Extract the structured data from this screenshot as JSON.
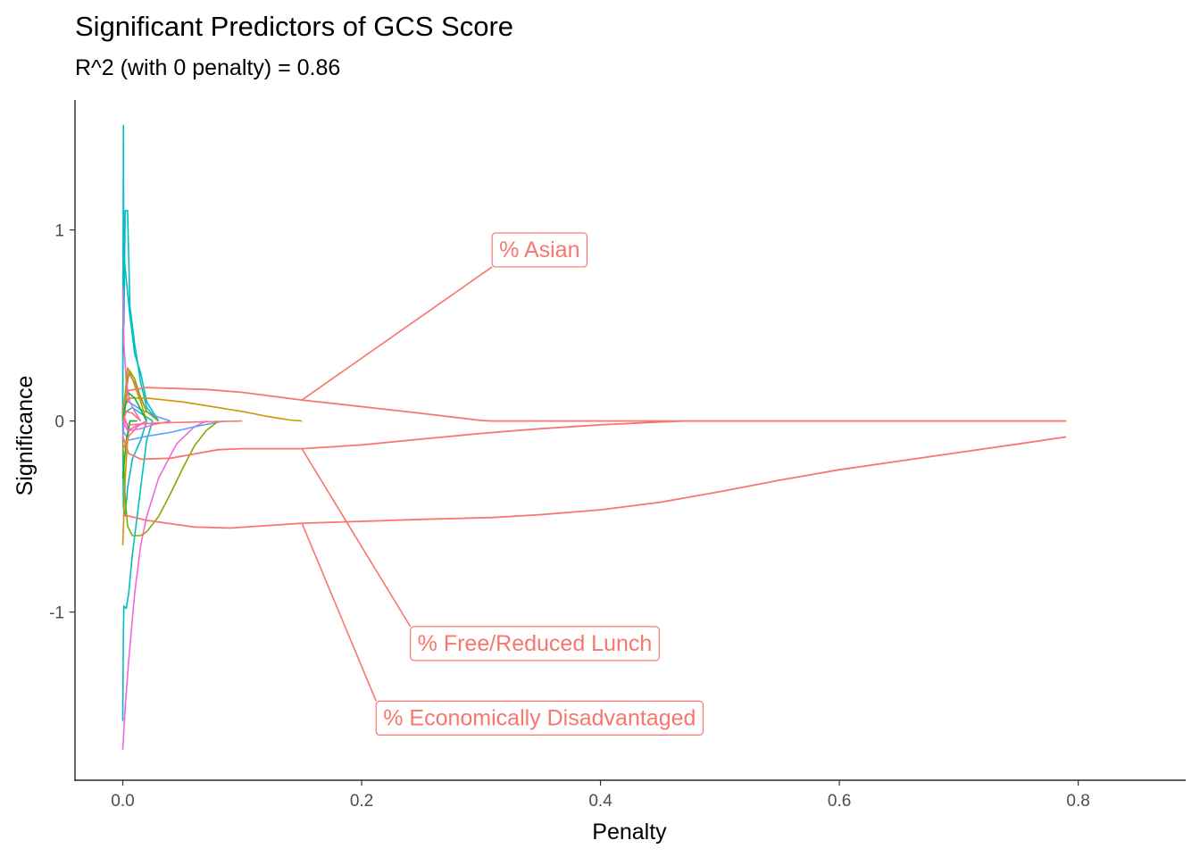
{
  "chart_data": {
    "type": "line",
    "title": "Significant Predictors of GCS Score",
    "subtitle": "R^2 (with 0 penalty) = 0.86",
    "xlabel": "Penalty",
    "ylabel": "Significance",
    "xlim": [
      -0.04,
      0.89
    ],
    "ylim": [
      -1.88,
      1.68
    ],
    "x_ticks": [
      0.0,
      0.2,
      0.4,
      0.6,
      0.8
    ],
    "x_tick_labels": [
      "0.0",
      "0.2",
      "0.4",
      "0.6",
      "0.8"
    ],
    "y_ticks": [
      -1,
      0,
      1
    ],
    "y_tick_labels": [
      "-1",
      "0",
      "1"
    ],
    "grid": false,
    "legend": "none",
    "colors": {
      "red": "#F8766D",
      "olive": "#7CAE00",
      "orange": "#CD9600",
      "green": "#00BA38",
      "cyan": "#00BFC4",
      "blue": "#619CFF",
      "magenta": "#F564E3"
    },
    "highlighted_series": [
      {
        "name": "% Asian",
        "color": "#F8766D",
        "points": [
          [
            0,
            0.07
          ],
          [
            0.005,
            0.16
          ],
          [
            0.02,
            0.175
          ],
          [
            0.07,
            0.165
          ],
          [
            0.1,
            0.15
          ],
          [
            0.15,
            0.11
          ],
          [
            0.2,
            0.075
          ],
          [
            0.25,
            0.04
          ],
          [
            0.3,
            0.003
          ],
          [
            0.31,
            0.0
          ],
          [
            0.79,
            0.0
          ]
        ]
      },
      {
        "name": "% Free/Reduced Lunch",
        "color": "#F8766D",
        "points": [
          [
            0,
            -0.08
          ],
          [
            0.005,
            -0.17
          ],
          [
            0.015,
            -0.2
          ],
          [
            0.04,
            -0.195
          ],
          [
            0.08,
            -0.15
          ],
          [
            0.1,
            -0.145
          ],
          [
            0.15,
            -0.145
          ],
          [
            0.2,
            -0.125
          ],
          [
            0.25,
            -0.095
          ],
          [
            0.3,
            -0.065
          ],
          [
            0.35,
            -0.04
          ],
          [
            0.4,
            -0.02
          ],
          [
            0.45,
            -0.005
          ],
          [
            0.47,
            0.0
          ],
          [
            0.79,
            0.0
          ]
        ]
      },
      {
        "name": "% Economically Disadvantaged",
        "color": "#F8766D",
        "points": [
          [
            0,
            -0.49
          ],
          [
            0.02,
            -0.52
          ],
          [
            0.06,
            -0.555
          ],
          [
            0.09,
            -0.56
          ],
          [
            0.15,
            -0.535
          ],
          [
            0.2,
            -0.525
          ],
          [
            0.25,
            -0.515
          ],
          [
            0.31,
            -0.505
          ],
          [
            0.35,
            -0.49
          ],
          [
            0.4,
            -0.465
          ],
          [
            0.45,
            -0.425
          ],
          [
            0.5,
            -0.37
          ],
          [
            0.55,
            -0.31
          ],
          [
            0.6,
            -0.255
          ],
          [
            0.65,
            -0.21
          ],
          [
            0.7,
            -0.165
          ],
          [
            0.75,
            -0.12
          ],
          [
            0.79,
            -0.083
          ]
        ]
      }
    ],
    "background_series": [
      {
        "color": "#00BFC4",
        "points": [
          [
            0,
            0.0
          ],
          [
            0.0005,
            1.55
          ],
          [
            0.001,
            0.5
          ],
          [
            0.002,
            1.1
          ],
          [
            0.004,
            1.1
          ],
          [
            0.006,
            0.6
          ],
          [
            0.01,
            0.4
          ],
          [
            0.015,
            0.2
          ],
          [
            0.02,
            0.07
          ],
          [
            0.03,
            0.0
          ]
        ]
      },
      {
        "color": "#00BFC4",
        "points": [
          [
            0,
            0.0
          ],
          [
            0.0005,
            0.9
          ],
          [
            0.002,
            0.8
          ],
          [
            0.006,
            0.55
          ],
          [
            0.01,
            0.35
          ],
          [
            0.015,
            0.25
          ],
          [
            0.02,
            0.1
          ],
          [
            0.03,
            0.0
          ]
        ]
      },
      {
        "color": "#00BFC4",
        "points": [
          [
            0,
            0.0
          ],
          [
            0.0005,
            -0.45
          ],
          [
            0.002,
            -0.5
          ],
          [
            0.004,
            -0.35
          ],
          [
            0.008,
            -0.2
          ],
          [
            0.015,
            -0.1
          ],
          [
            0.02,
            0.0
          ]
        ]
      },
      {
        "color": "#00BFC4",
        "points": [
          [
            0,
            -1.57
          ],
          [
            0.0005,
            -1.1
          ],
          [
            0.001,
            -0.97
          ],
          [
            0.003,
            -0.98
          ],
          [
            0.005,
            -0.9
          ],
          [
            0.008,
            -0.7
          ],
          [
            0.012,
            -0.5
          ],
          [
            0.016,
            -0.3
          ],
          [
            0.02,
            -0.1
          ],
          [
            0.025,
            0.0
          ]
        ]
      },
      {
        "color": "#00BFC4",
        "points": [
          [
            0,
            0.0
          ],
          [
            0.003,
            0.05
          ],
          [
            0.008,
            0.07
          ],
          [
            0.015,
            0.04
          ],
          [
            0.025,
            0.0
          ]
        ]
      },
      {
        "color": "#F564E3",
        "points": [
          [
            0,
            -1.72
          ],
          [
            0.002,
            -1.5
          ],
          [
            0.005,
            -1.25
          ],
          [
            0.01,
            -0.9
          ],
          [
            0.015,
            -0.65
          ],
          [
            0.02,
            -0.5
          ],
          [
            0.03,
            -0.3
          ],
          [
            0.045,
            -0.12
          ],
          [
            0.06,
            -0.03
          ],
          [
            0.07,
            0.0
          ]
        ]
      },
      {
        "color": "#F564E3",
        "points": [
          [
            0,
            0.7
          ],
          [
            0.001,
            0.4
          ],
          [
            0.003,
            0.2
          ],
          [
            0.006,
            0.1
          ],
          [
            0.01,
            0.05
          ],
          [
            0.015,
            0.0
          ]
        ]
      },
      {
        "color": "#F564E3",
        "points": [
          [
            0,
            -0.1
          ],
          [
            0.003,
            0.15
          ],
          [
            0.005,
            0.25
          ],
          [
            0.01,
            0.2
          ],
          [
            0.02,
            0.05
          ],
          [
            0.03,
            0.0
          ]
        ]
      },
      {
        "color": "#F564E3",
        "points": [
          [
            0,
            0.05
          ],
          [
            0.005,
            -0.05
          ],
          [
            0.015,
            -0.04
          ],
          [
            0.025,
            -0.02
          ],
          [
            0.04,
            0.0
          ]
        ]
      },
      {
        "color": "#619CFF",
        "points": [
          [
            0,
            -0.05
          ],
          [
            0.005,
            -0.1
          ],
          [
            0.02,
            -0.08
          ],
          [
            0.04,
            -0.06
          ],
          [
            0.06,
            -0.03
          ],
          [
            0.085,
            0.0
          ]
        ]
      },
      {
        "color": "#619CFF",
        "points": [
          [
            0,
            0.1
          ],
          [
            0.005,
            0.1
          ],
          [
            0.015,
            0.06
          ],
          [
            0.03,
            0.02
          ],
          [
            0.04,
            0.0
          ]
        ]
      },
      {
        "color": "#7CAE00",
        "points": [
          [
            0,
            -0.1
          ],
          [
            0.002,
            -0.4
          ],
          [
            0.004,
            -0.55
          ],
          [
            0.008,
            -0.6
          ],
          [
            0.015,
            -0.6
          ],
          [
            0.02,
            -0.58
          ],
          [
            0.03,
            -0.5
          ],
          [
            0.04,
            -0.38
          ],
          [
            0.05,
            -0.25
          ],
          [
            0.06,
            -0.13
          ],
          [
            0.07,
            -0.05
          ],
          [
            0.08,
            0.0
          ]
        ]
      },
      {
        "color": "#7CAE00",
        "points": [
          [
            0,
            0.0
          ],
          [
            0.003,
            0.2
          ],
          [
            0.006,
            0.26
          ],
          [
            0.01,
            0.22
          ],
          [
            0.015,
            0.12
          ],
          [
            0.02,
            0.05
          ],
          [
            0.03,
            0.0
          ]
        ]
      },
      {
        "color": "#CD9600",
        "points": [
          [
            0,
            -0.65
          ],
          [
            0.002,
            -0.3
          ],
          [
            0.004,
            -0.1
          ],
          [
            0.006,
            0.0
          ],
          [
            0.01,
            0.0
          ]
        ]
      },
      {
        "color": "#CD9600",
        "points": [
          [
            0,
            0.05
          ],
          [
            0.005,
            0.12
          ],
          [
            0.02,
            0.12
          ],
          [
            0.05,
            0.1
          ],
          [
            0.08,
            0.07
          ],
          [
            0.1,
            0.05
          ],
          [
            0.12,
            0.025
          ],
          [
            0.14,
            0.005
          ],
          [
            0.15,
            0.0
          ]
        ]
      },
      {
        "color": "#CD9600",
        "points": [
          [
            0,
            0.0
          ],
          [
            0.004,
            0.28
          ],
          [
            0.008,
            0.22
          ],
          [
            0.015,
            0.1
          ],
          [
            0.02,
            0.0
          ]
        ]
      },
      {
        "color": "#00BA38",
        "points": [
          [
            0,
            -0.3
          ],
          [
            0.003,
            -0.1
          ],
          [
            0.006,
            0.0
          ],
          [
            0.012,
            0.0
          ]
        ]
      },
      {
        "color": "#00BA38",
        "points": [
          [
            0,
            0.0
          ],
          [
            0.004,
            0.15
          ],
          [
            0.01,
            0.12
          ],
          [
            0.015,
            0.06
          ],
          [
            0.02,
            0.0
          ]
        ]
      },
      {
        "color": "#F8766D",
        "points": [
          [
            0,
            0.0
          ],
          [
            0.005,
            -0.02
          ],
          [
            0.03,
            -0.01
          ],
          [
            0.1,
            0.0
          ]
        ]
      },
      {
        "color": "#F8766D",
        "points": [
          [
            0,
            0.0
          ],
          [
            0.003,
            0.05
          ],
          [
            0.008,
            0.04
          ],
          [
            0.015,
            0.0
          ]
        ]
      },
      {
        "color": "#F8766D",
        "points": [
          [
            0,
            -0.15
          ],
          [
            0.005,
            -0.08
          ],
          [
            0.012,
            -0.03
          ],
          [
            0.02,
            0.0
          ]
        ]
      },
      {
        "color": "#F564E3",
        "points": [
          [
            0,
            0.0
          ],
          [
            0.004,
            -0.05
          ],
          [
            0.01,
            -0.03
          ],
          [
            0.02,
            0.0
          ]
        ]
      }
    ],
    "annotations": [
      {
        "text": "% Asian",
        "color": "#F8766D",
        "anchor_series": 0,
        "anchor": [
          0.15,
          0.11
        ],
        "label_pos": [
          0.349,
          0.9
        ]
      },
      {
        "text": "% Free/Reduced Lunch",
        "color": "#F8766D",
        "anchor_series": 1,
        "anchor": [
          0.15,
          -0.145
        ],
        "label_pos": [
          0.345,
          -1.16
        ]
      },
      {
        "text": "% Economically Disadvantaged",
        "color": "#F8766D",
        "anchor_series": 2,
        "anchor": [
          0.15,
          -0.535
        ],
        "label_pos": [
          0.349,
          -1.55
        ]
      }
    ]
  }
}
